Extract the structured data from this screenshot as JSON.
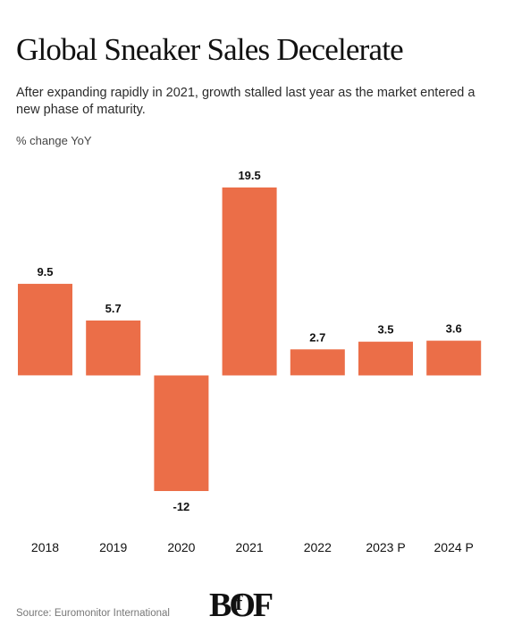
{
  "header": {
    "title": "Global Sneaker Sales Decelerate",
    "subtitle": "After expanding rapidly in 2021, growth stalled last year as the market entered a new phase of maturity.",
    "unit_label": "% change YoY"
  },
  "footer": {
    "source": "Source: Euromonitor International",
    "logo_text": "BOF"
  },
  "colors": {
    "bar": "#EB6E48",
    "text": "#111111"
  },
  "chart_data": {
    "type": "bar",
    "title": "Global Sneaker Sales Decelerate",
    "ylabel": "% change YoY",
    "categories": [
      "2018",
      "2019",
      "2020",
      "2021",
      "2022",
      "2023 P",
      "2024 P"
    ],
    "values": [
      9.5,
      5.7,
      -12,
      19.5,
      2.7,
      3.5,
      3.6
    ],
    "value_labels": [
      "9.5",
      "5.7",
      "-12",
      "19.5",
      "2.7",
      "3.5",
      "3.6"
    ],
    "ylim": [
      -12,
      19.5
    ],
    "grid": false,
    "legend": "none"
  }
}
